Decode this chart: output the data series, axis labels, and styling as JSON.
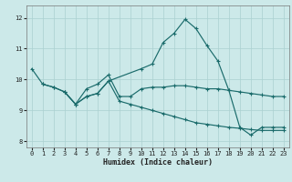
{
  "xlabel": "Humidex (Indice chaleur)",
  "bg_color": "#cce9e9",
  "grid_color": "#aad0d0",
  "line_color": "#1a6b6b",
  "xlim": [
    -0.5,
    23.5
  ],
  "ylim": [
    7.8,
    12.4
  ],
  "yticks": [
    8,
    9,
    10,
    11,
    12
  ],
  "xticks": [
    0,
    1,
    2,
    3,
    4,
    5,
    6,
    7,
    8,
    9,
    10,
    11,
    12,
    13,
    14,
    15,
    16,
    17,
    18,
    19,
    20,
    21,
    22,
    23
  ],
  "line1_x": [
    0,
    1,
    2,
    3,
    4,
    5,
    6,
    7,
    10,
    11,
    12,
    13,
    14,
    15,
    16,
    17,
    18,
    19,
    20,
    21,
    22,
    23
  ],
  "line1_y": [
    10.35,
    9.85,
    9.75,
    9.6,
    9.2,
    9.45,
    9.55,
    9.95,
    10.35,
    10.5,
    11.2,
    11.5,
    11.95,
    11.65,
    11.1,
    10.6,
    9.65,
    8.45,
    8.2,
    8.45,
    8.45,
    8.45
  ],
  "line2_x": [
    1,
    2,
    3,
    4,
    5,
    6,
    7,
    8,
    9,
    10,
    11,
    12,
    13,
    14,
    15,
    16,
    17,
    18,
    19,
    20,
    21,
    22,
    23
  ],
  "line2_y": [
    9.85,
    9.75,
    9.6,
    9.2,
    9.7,
    9.85,
    10.15,
    9.45,
    9.45,
    9.7,
    9.75,
    9.75,
    9.8,
    9.8,
    9.75,
    9.7,
    9.7,
    9.65,
    9.6,
    9.55,
    9.5,
    9.45,
    9.45
  ],
  "line3_x": [
    3,
    4,
    5,
    6,
    7,
    8,
    9,
    10,
    11,
    12,
    13,
    14,
    15,
    16,
    17,
    18,
    19,
    20,
    21,
    22,
    23
  ],
  "line3_y": [
    9.6,
    9.2,
    9.45,
    9.55,
    9.95,
    9.3,
    9.2,
    9.1,
    9.0,
    8.9,
    8.8,
    8.7,
    8.6,
    8.55,
    8.5,
    8.45,
    8.42,
    8.38,
    8.35,
    8.35,
    8.35
  ]
}
